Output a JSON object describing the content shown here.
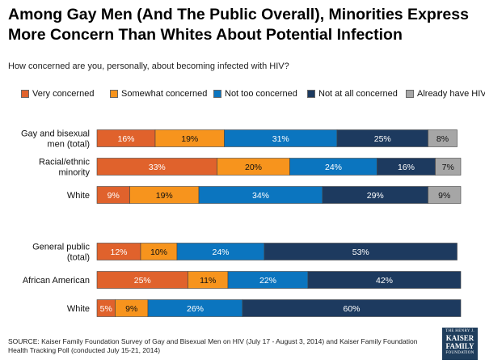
{
  "title": "Among Gay Men (And The Public Overall), Minorities Express More Concern Than Whites About Potential Infection",
  "subtitle": "How concerned are you, personally, about becoming infected with HIV?",
  "footer": {
    "source": "SOURCE: Kaiser Family Foundation Survey of Gay and Bisexual Men on HIV (July 17 - August 3, 2014) and Kaiser Family Foundation Health Tracking Poll (conducted July 15-21, 2014)"
  },
  "logo": {
    "line1": "THE HENRY J.",
    "line2a": "KAISER",
    "line2b": "FAMILY",
    "line3": "FOUNDATION"
  },
  "colors": {
    "very": "#e0622c",
    "somewhat": "#f7941d",
    "not_too": "#0b75bf",
    "not_at_all": "#1d3a5f",
    "already": "#a6a6a6"
  },
  "chart_data": {
    "type": "bar",
    "orientation": "horizontal-stacked",
    "title": "Among Gay Men (And The Public Overall), Minorities Express More Concern Than Whites About Potential Infection",
    "subtitle": "How concerned are you, personally, about becoming infected with HIV?",
    "legend_position": "top",
    "series": [
      {
        "key": "very",
        "name": "Very concerned"
      },
      {
        "key": "somewhat",
        "name": "Somewhat concerned"
      },
      {
        "key": "not_too",
        "name": "Not too concerned"
      },
      {
        "key": "not_at_all",
        "name": "Not at all concerned"
      },
      {
        "key": "already",
        "name": "Already have HIV"
      }
    ],
    "categories": [
      {
        "label": "Gay and bisexual men (total)",
        "group": 1,
        "values": [
          16,
          19,
          31,
          25,
          8
        ]
      },
      {
        "label": "Racial/ethnic minority",
        "group": 1,
        "values": [
          33,
          20,
          24,
          16,
          7
        ]
      },
      {
        "label": "White",
        "group": 1,
        "values": [
          9,
          19,
          34,
          29,
          9
        ]
      },
      {
        "label": "General public (total)",
        "group": 2,
        "values": [
          12,
          10,
          24,
          53,
          null
        ]
      },
      {
        "label": "African American",
        "group": 2,
        "values": [
          25,
          11,
          22,
          42,
          null
        ]
      },
      {
        "label": "White",
        "group": 2,
        "values": [
          5,
          9,
          26,
          60,
          null
        ]
      }
    ],
    "unit": "%"
  }
}
